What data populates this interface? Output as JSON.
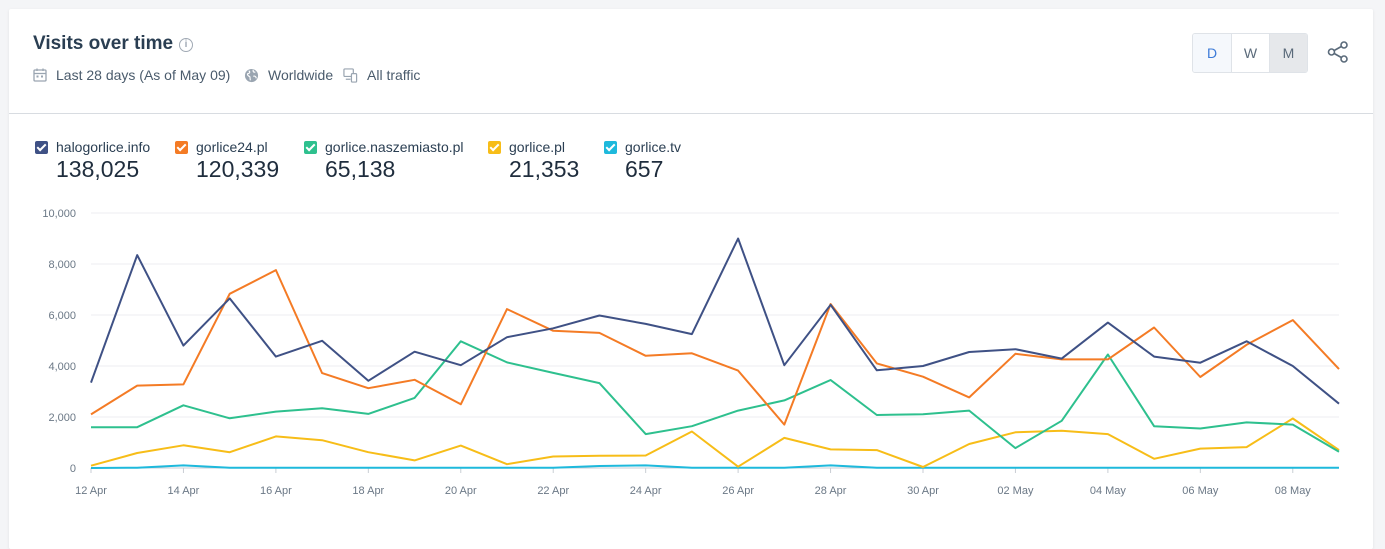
{
  "header": {
    "title": "Visits over time",
    "date_range": "Last 28 days (As of May 09)",
    "region": "Worldwide",
    "traffic": "All traffic"
  },
  "granularity": {
    "options": [
      "D",
      "W",
      "M"
    ],
    "selected": "D"
  },
  "icons": {
    "info": "info-icon",
    "calendar": "calendar-icon",
    "globe": "globe-icon",
    "devices": "devices-icon",
    "share": "share-icon"
  },
  "chart_data": {
    "type": "line",
    "x": [
      "12 Apr",
      "13 Apr",
      "14 Apr",
      "15 Apr",
      "16 Apr",
      "17 Apr",
      "18 Apr",
      "19 Apr",
      "20 Apr",
      "21 Apr",
      "22 Apr",
      "23 Apr",
      "24 Apr",
      "25 Apr",
      "26 Apr",
      "27 Apr",
      "28 Apr",
      "29 Apr",
      "30 Apr",
      "01 May",
      "02 May",
      "03 May",
      "04 May",
      "05 May",
      "06 May",
      "07 May",
      "08 May",
      "09 May"
    ],
    "x_tick_labels": [
      "12 Apr",
      "14 Apr",
      "16 Apr",
      "18 Apr",
      "20 Apr",
      "22 Apr",
      "24 Apr",
      "26 Apr",
      "28 Apr",
      "30 Apr",
      "02 May",
      "04 May",
      "06 May",
      "08 May"
    ],
    "ylim": [
      0,
      10000
    ],
    "y_ticks": [
      "0",
      "2,000",
      "4,000",
      "6,000",
      "8,000",
      "10,000"
    ],
    "grid": true,
    "legend_position": "top-left",
    "series": [
      {
        "name": "halogorlice.info",
        "total": "138,025",
        "color": "#3f5185",
        "values": [
          3350,
          8350,
          4800,
          6650,
          4370,
          4990,
          3420,
          4560,
          4030,
          5130,
          5480,
          5980,
          5650,
          5250,
          9000,
          4030,
          6400,
          3830,
          4000,
          4550,
          4660,
          4290,
          5700,
          4370,
          4130,
          4970,
          4000,
          2520
        ]
      },
      {
        "name": "gorlice24.pl",
        "total": "120,339",
        "color": "#f47b25",
        "values": [
          2100,
          3230,
          3280,
          6830,
          7760,
          3720,
          3130,
          3460,
          2500,
          6230,
          5380,
          5300,
          4400,
          4500,
          3820,
          1700,
          6430,
          4100,
          3580,
          2770,
          4480,
          4260,
          4260,
          5510,
          3570,
          4830,
          5800,
          3880
        ]
      },
      {
        "name": "gorlice.naszemiasto.pl",
        "total": "65,138",
        "color": "#2ec08e",
        "values": [
          1600,
          1600,
          2460,
          1950,
          2210,
          2340,
          2120,
          2750,
          4970,
          4140,
          3730,
          3330,
          1330,
          1640,
          2250,
          2650,
          3450,
          2080,
          2110,
          2250,
          780,
          1850,
          4450,
          1640,
          1550,
          1790,
          1700,
          640
        ]
      },
      {
        "name": "gorlice.pl",
        "total": "21,353",
        "color": "#f7bd18",
        "values": [
          90,
          590,
          890,
          620,
          1240,
          1090,
          620,
          300,
          880,
          150,
          450,
          480,
          490,
          1430,
          50,
          1180,
          730,
          700,
          40,
          940,
          1400,
          1460,
          1330,
          360,
          760,
          820,
          1940,
          700
        ]
      },
      {
        "name": "gorlice.tv",
        "total": "657",
        "color": "#1eb9dc",
        "values": [
          0,
          10,
          100,
          10,
          10,
          10,
          10,
          10,
          10,
          10,
          10,
          80,
          100,
          10,
          10,
          10,
          100,
          10,
          10,
          10,
          10,
          10,
          10,
          10,
          10,
          10,
          10,
          10
        ]
      }
    ]
  }
}
